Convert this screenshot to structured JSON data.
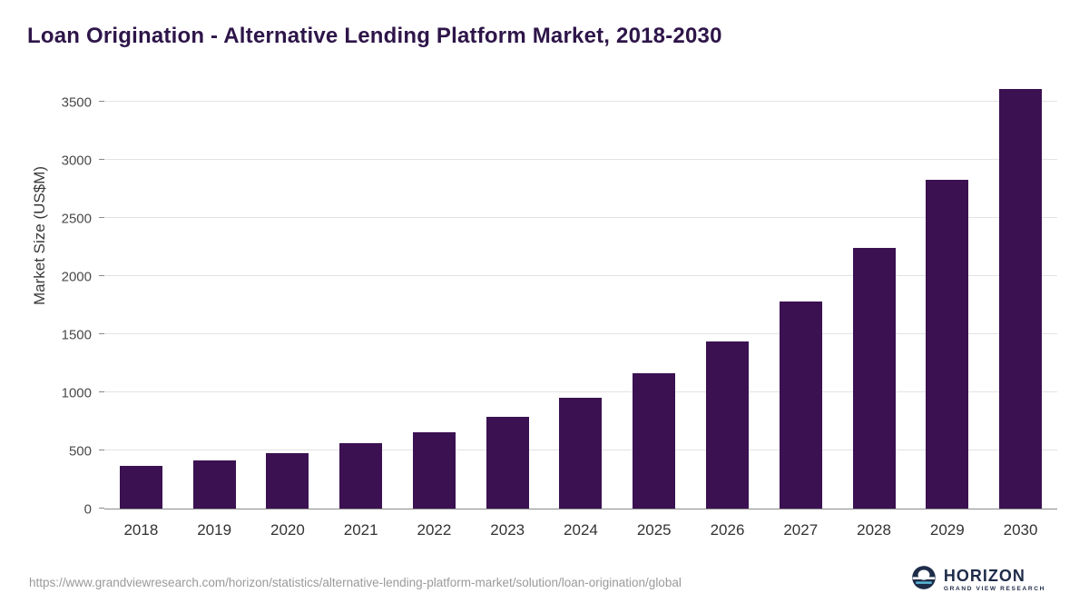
{
  "title": "Loan Origination - Alternative Lending Platform Market, 2018-2030",
  "theme": {
    "bar_color": "#3b1152",
    "title_color": "#2e1549",
    "gridline_color": "#e3e3e3",
    "axis_text_color": "#4a4a4a",
    "logo_navy": "#1e2c49",
    "logo_blue": "#5bb7d8"
  },
  "chart_data": {
    "type": "bar",
    "title": "Loan Origination - Alternative Lending Platform Market, 2018-2030",
    "xlabel": "",
    "ylabel": "Market Size (US$M)",
    "categories": [
      "2018",
      "2019",
      "2020",
      "2021",
      "2022",
      "2023",
      "2024",
      "2025",
      "2026",
      "2027",
      "2028",
      "2029",
      "2030"
    ],
    "values": [
      365,
      415,
      480,
      565,
      660,
      790,
      950,
      1165,
      1440,
      1785,
      2240,
      2825,
      3610
    ],
    "ylim": [
      0,
      3500
    ],
    "yticks": [
      0,
      500,
      1000,
      1500,
      2000,
      2500,
      3000,
      3500
    ],
    "grid": true,
    "legend": "none"
  },
  "footer": {
    "source_url": "https://www.grandviewresearch.com/horizon/statistics/alternative-lending-platform-market/solution/loan-origination/global",
    "logo_name": "HORIZON",
    "logo_subtitle": "GRAND VIEW RESEARCH"
  }
}
